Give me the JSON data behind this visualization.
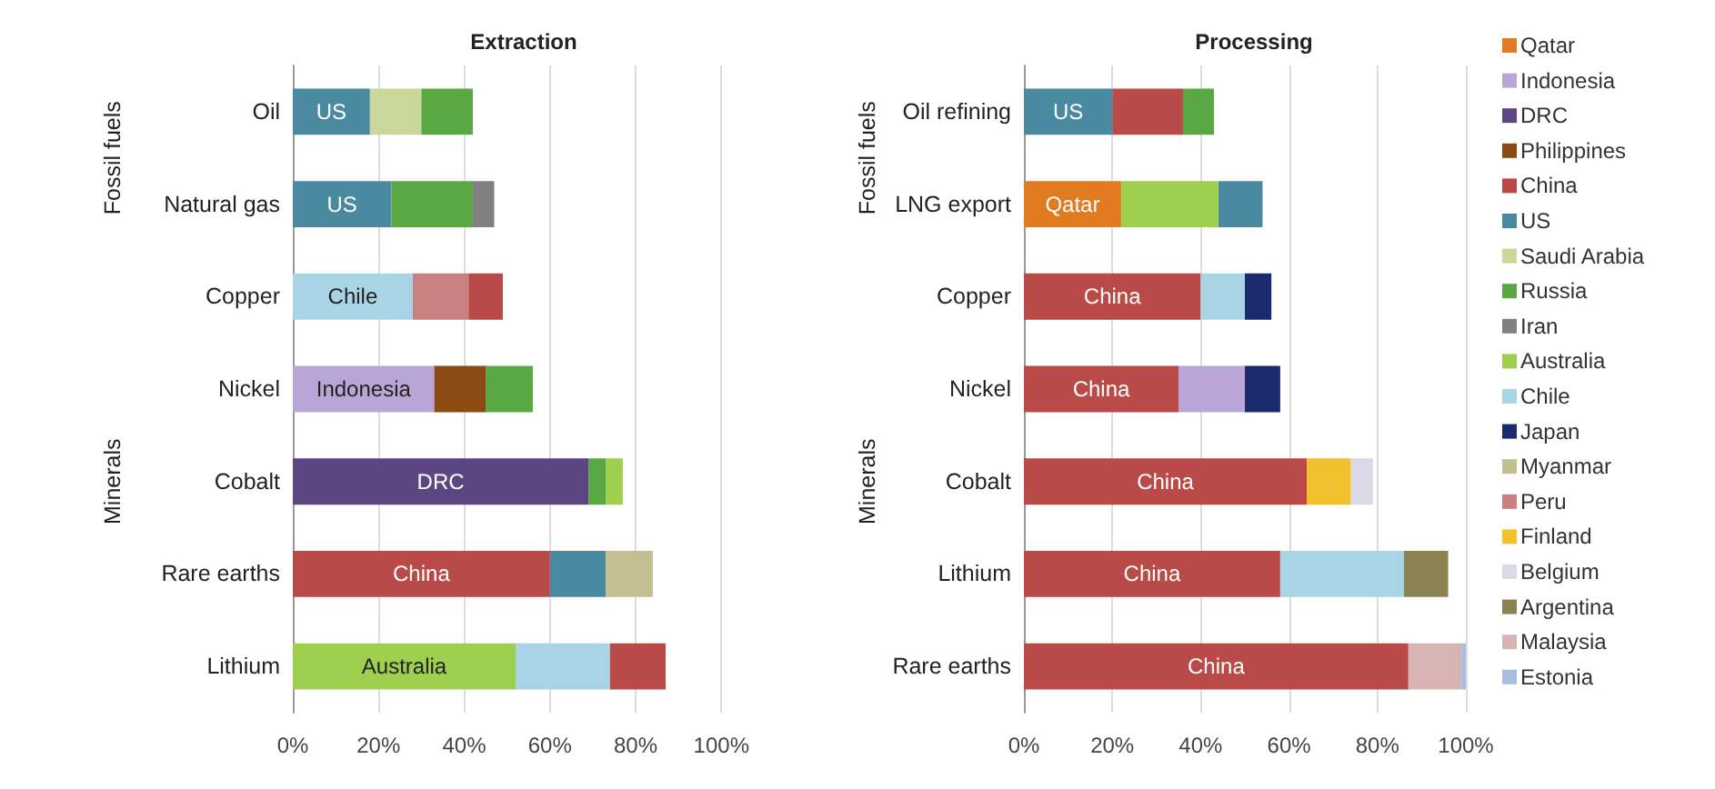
{
  "chart_data": [
    {
      "type": "bar",
      "title": "Extraction",
      "orientation": "horizontal",
      "categories": [
        "Oil",
        "Natural gas",
        "Copper",
        "Nickel",
        "Cobalt",
        "Rare earths",
        "Lithium"
      ],
      "xlim": [
        0,
        100
      ],
      "xticks": [
        {
          "value": 0,
          "label": "0%"
        },
        {
          "value": 20,
          "label": "20%"
        },
        {
          "value": 40,
          "label": "40%"
        },
        {
          "value": 60,
          "label": "60%"
        },
        {
          "value": 80,
          "label": "80%"
        },
        {
          "value": 100,
          "label": "100%"
        }
      ],
      "grid": "x",
      "legend": false,
      "annotations": [
        "Fossil fuels",
        "Minerals"
      ],
      "series": [
        {
          "color": "#4a8aa0",
          "values": [
            18,
            23,
            null,
            null,
            null,
            13,
            null
          ],
          "base": [
            0,
            0,
            null,
            null,
            null,
            60,
            null
          ],
          "value_labels": [
            "US",
            "US",
            null,
            null,
            null,
            null,
            null
          ]
        },
        {
          "color": "#c9d89a",
          "values": [
            12,
            null,
            null,
            null,
            null,
            null,
            null
          ],
          "base": [
            18,
            null,
            null,
            null,
            null,
            null,
            null
          ]
        },
        {
          "color": "#5aa844",
          "values": [
            12,
            19,
            null,
            11,
            4,
            null,
            null
          ],
          "base": [
            30,
            23,
            null,
            45,
            69,
            null,
            null
          ]
        },
        {
          "color": "#808080",
          "values": [
            null,
            5,
            null,
            null,
            null,
            null,
            null
          ],
          "base": [
            null,
            42,
            null,
            null,
            null,
            null,
            null
          ]
        },
        {
          "color": "#a8d4e6",
          "values": [
            null,
            null,
            28,
            null,
            null,
            null,
            22
          ],
          "base": [
            null,
            null,
            0,
            null,
            null,
            null,
            52
          ],
          "value_labels": [
            null,
            null,
            "Chile",
            null,
            null,
            null,
            null
          ]
        },
        {
          "color": "#c98080",
          "values": [
            null,
            null,
            13,
            null,
            null,
            null,
            null
          ],
          "base": [
            null,
            null,
            28,
            null,
            null,
            null,
            null
          ]
        },
        {
          "color": "#b94a48",
          "values": [
            null,
            null,
            8,
            null,
            null,
            60,
            13
          ],
          "base": [
            null,
            null,
            41,
            null,
            null,
            0,
            74
          ],
          "value_labels": [
            null,
            null,
            null,
            null,
            null,
            "China",
            null
          ]
        },
        {
          "color": "#b9a5d6",
          "values": [
            null,
            null,
            null,
            33,
            null,
            null,
            null
          ],
          "base": [
            null,
            null,
            null,
            0,
            null,
            null,
            null
          ],
          "value_labels": [
            null,
            null,
            null,
            "Indonesia",
            null,
            null,
            null
          ]
        },
        {
          "color": "#8a4a12",
          "values": [
            null,
            null,
            null,
            12,
            null,
            null,
            null
          ],
          "base": [
            null,
            null,
            null,
            33,
            null,
            null,
            null
          ]
        },
        {
          "color": "#5b4682",
          "values": [
            null,
            null,
            null,
            null,
            69,
            null,
            null
          ],
          "base": [
            null,
            null,
            null,
            null,
            0,
            null,
            null
          ],
          "value_labels": [
            null,
            null,
            null,
            null,
            "DRC",
            null,
            null
          ]
        },
        {
          "color": "#9fcf4f",
          "values": [
            null,
            null,
            null,
            null,
            4,
            null,
            52
          ],
          "base": [
            null,
            null,
            null,
            null,
            73,
            null,
            0
          ],
          "value_labels": [
            null,
            null,
            null,
            null,
            null,
            null,
            "Australia"
          ]
        },
        {
          "color": "#c4bf93",
          "values": [
            null,
            null,
            null,
            null,
            null,
            11,
            null
          ],
          "base": [
            null,
            null,
            null,
            null,
            null,
            73,
            null
          ]
        }
      ]
    },
    {
      "type": "bar",
      "title": "Processing",
      "orientation": "horizontal",
      "categories": [
        "Oil refining",
        "LNG export",
        "Copper",
        "Nickel",
        "Cobalt",
        "Lithium",
        "Rare earths"
      ],
      "xlim": [
        0,
        100
      ],
      "xticks": [
        {
          "value": 0,
          "label": "0%"
        },
        {
          "value": 20,
          "label": "20%"
        },
        {
          "value": 40,
          "label": "40%"
        },
        {
          "value": 60,
          "label": "60%"
        },
        {
          "value": 80,
          "label": "80%"
        },
        {
          "value": 100,
          "label": "100%"
        }
      ],
      "grid": "x",
      "legend": "right",
      "annotations": [
        "Fossil fuels",
        "Minerals"
      ],
      "series": [
        {
          "name": "Qatar",
          "color": "#e07b1f",
          "values": [
            null,
            22,
            null,
            null,
            null,
            null,
            null
          ],
          "base": [
            null,
            0,
            null,
            null,
            null,
            null,
            null
          ],
          "value_labels": [
            null,
            "Qatar",
            null,
            null,
            null,
            null,
            null
          ]
        },
        {
          "name": "Indonesia",
          "color": "#b9a5d6",
          "values": [
            null,
            null,
            null,
            15,
            null,
            null,
            null
          ],
          "base": [
            null,
            null,
            null,
            35,
            null,
            null,
            null
          ]
        },
        {
          "name": "DRC",
          "color": "#5b4682",
          "values": [
            null,
            null,
            null,
            null,
            null,
            null,
            null
          ]
        },
        {
          "name": "Philippines",
          "color": "#8a4a12",
          "values": [
            null,
            null,
            null,
            null,
            null,
            null,
            null
          ]
        },
        {
          "name": "China",
          "color": "#b94a48",
          "values": [
            16,
            null,
            40,
            35,
            64,
            58,
            87
          ],
          "base": [
            20,
            null,
            0,
            0,
            0,
            0,
            0
          ],
          "value_labels": [
            null,
            null,
            "China",
            "China",
            "China",
            "China",
            "China"
          ]
        },
        {
          "name": "US",
          "color": "#4a8aa0",
          "values": [
            20,
            10,
            null,
            null,
            null,
            null,
            null
          ],
          "base": [
            0,
            44,
            null,
            null,
            null,
            null,
            null
          ],
          "value_labels": [
            "US",
            null,
            null,
            null,
            null,
            null,
            null
          ]
        },
        {
          "name": "Saudi Arabia",
          "color": "#c9d89a",
          "values": [
            null,
            null,
            null,
            null,
            null,
            null,
            null
          ]
        },
        {
          "name": "Russia",
          "color": "#5aa844",
          "values": [
            7,
            null,
            null,
            null,
            null,
            null,
            null
          ],
          "base": [
            36,
            null,
            null,
            null,
            null,
            null,
            null
          ]
        },
        {
          "name": "Iran",
          "color": "#808080",
          "values": [
            null,
            null,
            null,
            null,
            null,
            null,
            null
          ]
        },
        {
          "name": "Australia",
          "color": "#9fcf4f",
          "values": [
            null,
            22,
            null,
            null,
            null,
            null,
            null
          ],
          "base": [
            null,
            22,
            null,
            null,
            null,
            null,
            null
          ]
        },
        {
          "name": "Chile",
          "color": "#a8d4e6",
          "values": [
            null,
            null,
            10,
            null,
            null,
            28,
            null
          ],
          "base": [
            null,
            null,
            40,
            null,
            null,
            58,
            null
          ]
        },
        {
          "name": "Japan",
          "color": "#1a2a6c",
          "values": [
            null,
            null,
            6,
            8,
            null,
            null,
            null
          ],
          "base": [
            null,
            null,
            50,
            50,
            null,
            null,
            null
          ]
        },
        {
          "name": "Myanmar",
          "color": "#c4bf93",
          "values": [
            null,
            null,
            null,
            null,
            null,
            null,
            null
          ]
        },
        {
          "name": "Peru",
          "color": "#c98080",
          "values": [
            null,
            null,
            null,
            null,
            null,
            null,
            null
          ]
        },
        {
          "name": "Finland",
          "color": "#f2c12e",
          "values": [
            null,
            null,
            null,
            null,
            10,
            null,
            null
          ],
          "base": [
            null,
            null,
            null,
            null,
            64,
            null,
            null
          ]
        },
        {
          "name": "Belgium",
          "color": "#dcd8e6",
          "values": [
            null,
            null,
            null,
            null,
            5,
            null,
            null
          ],
          "base": [
            null,
            null,
            null,
            null,
            74,
            null,
            null
          ]
        },
        {
          "name": "Argentina",
          "color": "#8b8452",
          "values": [
            null,
            null,
            null,
            null,
            null,
            10,
            null
          ],
          "base": [
            null,
            null,
            null,
            null,
            null,
            86,
            null
          ]
        },
        {
          "name": "Malaysia",
          "color": "#d8b4b4",
          "values": [
            null,
            null,
            null,
            null,
            null,
            null,
            12
          ],
          "base": [
            null,
            null,
            null,
            null,
            null,
            null,
            87
          ]
        },
        {
          "name": "Estonia",
          "color": "#a9bde0",
          "values": [
            null,
            null,
            null,
            null,
            null,
            null,
            1
          ],
          "base": [
            null,
            null,
            null,
            null,
            null,
            null,
            99
          ]
        }
      ]
    }
  ]
}
